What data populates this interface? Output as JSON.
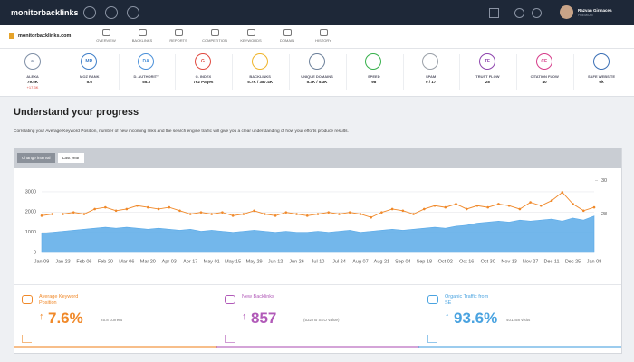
{
  "header": {
    "logo": "monitorbacklinks",
    "user_name": "Razvan Girmacea",
    "user_plan": "PREMIUM"
  },
  "subnav": {
    "domain": "monitorbacklinks.com",
    "tabs": [
      "OVERVIEW",
      "BACKLINKS",
      "REPORTS",
      "COMPETITION",
      "KEYWORDS",
      "DOMAIN",
      "HISTORY"
    ]
  },
  "metrics": [
    {
      "icon": "a",
      "label": "ALEXA",
      "value": "79.5K",
      "change": "+17.3K"
    },
    {
      "icon": "MR",
      "label": "MOZ RANK",
      "value": "5.6"
    },
    {
      "icon": "DA",
      "label": "D. AUTHORITY",
      "value": "55.3"
    },
    {
      "icon": "G",
      "label": "G. INDEX",
      "value": "762 Pages"
    },
    {
      "label": "BACKLINKS",
      "value": "5.7K / 387.4K"
    },
    {
      "label": "UNIQUE DOMAINS",
      "value": "5.3K / 5.3K"
    },
    {
      "label": "SPEED",
      "value": "98"
    },
    {
      "label": "SPAM",
      "value": "0 / 17"
    },
    {
      "icon": "TF",
      "label": "TRUST FLOW",
      "value": "28"
    },
    {
      "icon": "CF",
      "label": "CITATION FLOW",
      "value": "40"
    },
    {
      "label": "SAFE WEBSITE",
      "value": "ok"
    }
  ],
  "section": {
    "title": "Understand your progress",
    "description": "Correlating your Average Keyword Position, number of new incoming links and the search engine traffic will give you a clear understanding of how your efforts produce results."
  },
  "chart_panel": {
    "buttons": [
      "Change interval",
      "Last year"
    ]
  },
  "chart_data": {
    "type": "line",
    "categories": [
      "Jan 09",
      null,
      "Jan 23",
      null,
      "Feb 06",
      null,
      "Feb 20",
      null,
      "Mar 06",
      null,
      "Mar 20",
      null,
      "Apr 03",
      null,
      "Apr 17",
      null,
      "May 01",
      null,
      "May 15",
      null,
      "May 29",
      null,
      "Jun 12",
      null,
      "Jun 26",
      null,
      "Jul 10",
      null,
      "Jul 24",
      null,
      "Aug 07",
      null,
      "Aug 21",
      null,
      "Sep 04",
      null,
      "Sep 18",
      null,
      "Oct 02",
      null,
      "Oct 16",
      null,
      "Oct 30",
      null,
      "Nov 13",
      null,
      "Nov 27",
      null,
      "Dec 11",
      null,
      "Dec 25",
      null,
      "Jan 08"
    ],
    "series": [
      {
        "style": "area",
        "color": "#5aaae8",
        "values": [
          950,
          1000,
          1050,
          1100,
          1150,
          1200,
          1250,
          1200,
          1250,
          1200,
          1150,
          1200,
          1150,
          1100,
          1150,
          1050,
          1100,
          1050,
          1000,
          1050,
          1100,
          1050,
          1000,
          1050,
          1000,
          1000,
          1050,
          1000,
          1050,
          1100,
          1000,
          1050,
          1100,
          1150,
          1100,
          1150,
          1200,
          1250,
          1200,
          1300,
          1350,
          1450,
          1500,
          1550,
          1500,
          1600,
          1550,
          1600,
          1650,
          1550,
          1700,
          1600,
          1800
        ]
      },
      {
        "style": "line",
        "axis": "y2",
        "color": "#f0892a",
        "values": [
          27.9,
          28.0,
          28.0,
          28.1,
          28.0,
          28.3,
          28.4,
          28.2,
          28.3,
          28.5,
          28.4,
          28.3,
          28.4,
          28.2,
          28.0,
          28.1,
          28.0,
          28.1,
          27.9,
          28.0,
          28.2,
          28.0,
          27.9,
          28.1,
          28.0,
          27.9,
          28.0,
          28.1,
          28.0,
          28.1,
          28.0,
          27.8,
          28.1,
          28.3,
          28.2,
          28.0,
          28.3,
          28.5,
          28.4,
          28.6,
          28.3,
          28.5,
          28.4,
          28.6,
          28.5,
          28.3,
          28.7,
          28.5,
          28.8,
          29.3,
          28.6,
          28.2,
          28.4
        ]
      }
    ],
    "ylim": [
      0,
      3800
    ],
    "yticks": [
      0,
      1000,
      2000,
      3000
    ],
    "y2lim": [
      25.7,
      30.3
    ],
    "y2ticks": [
      28,
      30
    ],
    "grid": true
  },
  "cards": [
    {
      "title": "Average Keyword Position",
      "value": "7.6%",
      "note": "25.8 current"
    },
    {
      "title": "New Backlinks",
      "value": "857",
      "note": "(532 no SEO value)"
    },
    {
      "title": "Organic Traffic from SE",
      "value": "93.6%",
      "note": "401258 visits"
    }
  ]
}
